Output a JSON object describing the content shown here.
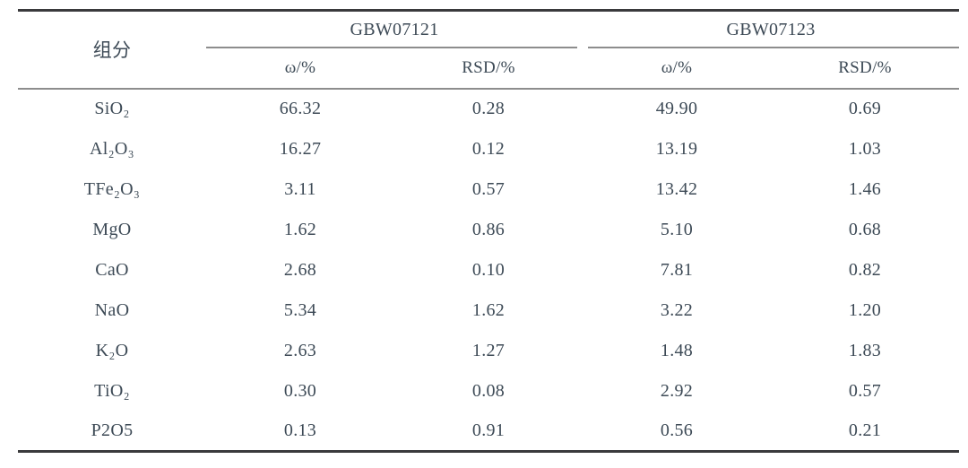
{
  "table": {
    "component_header": "组分",
    "groups": [
      {
        "label": "GBW07121",
        "sub": [
          "ω/%",
          "RSD/%"
        ]
      },
      {
        "label": "GBW07123",
        "sub": [
          "ω/%",
          "RSD/%"
        ]
      }
    ],
    "rows": [
      {
        "component": "SiO₂",
        "values": [
          "66.32",
          "0.28",
          "49.90",
          "0.69"
        ]
      },
      {
        "component": "Al₂O₃",
        "values": [
          "16.27",
          "0.12",
          "13.19",
          "1.03"
        ]
      },
      {
        "component": "TFe₂O₃",
        "values": [
          "3.11",
          "0.57",
          "13.42",
          "1.46"
        ]
      },
      {
        "component": "MgO",
        "values": [
          "1.62",
          "0.86",
          "5.10",
          "0.68"
        ]
      },
      {
        "component": "CaO",
        "values": [
          "2.68",
          "0.10",
          "7.81",
          "0.82"
        ]
      },
      {
        "component": "NaO",
        "values": [
          "5.34",
          "1.62",
          "3.22",
          "1.20"
        ]
      },
      {
        "component": "K₂O",
        "values": [
          "2.63",
          "1.27",
          "1.48",
          "1.83"
        ]
      },
      {
        "component": "TiO₂",
        "values": [
          "0.30",
          "0.08",
          "2.92",
          "0.57"
        ]
      },
      {
        "component": "P2O5",
        "values": [
          "0.13",
          "0.91",
          "0.56",
          "0.21"
        ]
      }
    ],
    "colors": {
      "text": "#3d4a56",
      "rule_heavy": "#3a3a3c",
      "rule_light": "#8d8d8d"
    }
  },
  "chart_data": {
    "type": "table",
    "columns": [
      "组分",
      "GBW07121 ω/%",
      "GBW07121 RSD/%",
      "GBW07123 ω/%",
      "GBW07123 RSD/%"
    ],
    "rows": [
      [
        "SiO₂",
        66.32,
        0.28,
        49.9,
        0.69
      ],
      [
        "Al₂O₃",
        16.27,
        0.12,
        13.19,
        1.03
      ],
      [
        "TFe₂O₃",
        3.11,
        0.57,
        13.42,
        1.46
      ],
      [
        "MgO",
        1.62,
        0.86,
        5.1,
        0.68
      ],
      [
        "CaO",
        2.68,
        0.1,
        7.81,
        0.82
      ],
      [
        "NaO",
        5.34,
        1.62,
        3.22,
        1.2
      ],
      [
        "K₂O",
        2.63,
        1.27,
        1.48,
        1.83
      ],
      [
        "TiO₂",
        0.3,
        0.08,
        2.92,
        0.57
      ],
      [
        "P2O5",
        0.13,
        0.91,
        0.56,
        0.21
      ]
    ]
  }
}
